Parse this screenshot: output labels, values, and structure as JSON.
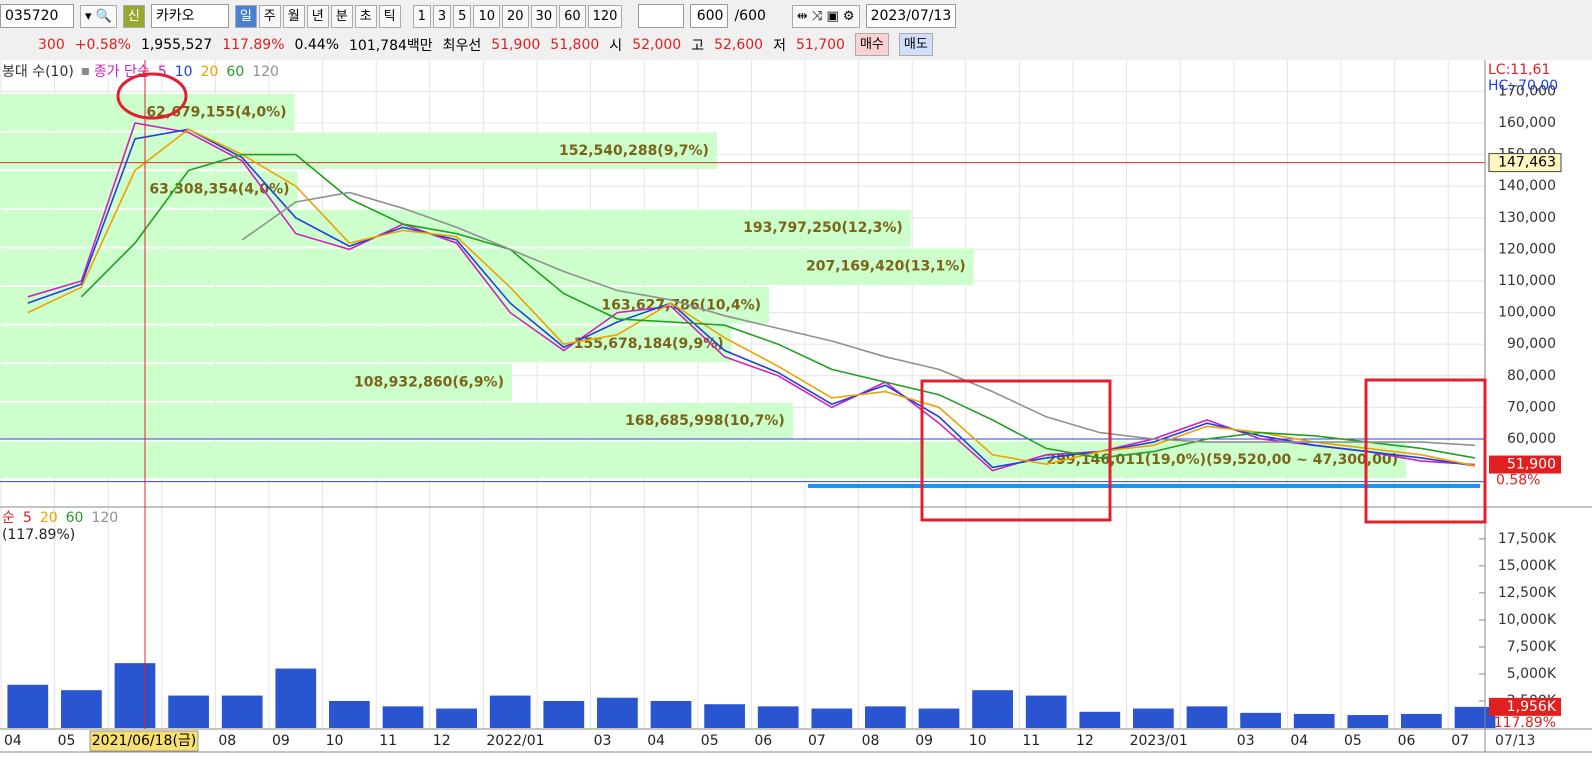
{
  "toolbar": {
    "code": "035720",
    "badge": "신",
    "name": "카카오",
    "periods": [
      "일",
      "주",
      "월",
      "년",
      "분",
      "초",
      "틱"
    ],
    "intervals": [
      "1",
      "3",
      "5",
      "10",
      "20",
      "30",
      "60",
      "120"
    ],
    "count": "600",
    "total": "/600",
    "date": "2023/07/13"
  },
  "quote": {
    "change": "300",
    "change_rate": "+0.58%",
    "volume": "1,955,527",
    "volume_rate": "117.89%",
    "turnover": "0.44%",
    "amount": "101,784백만",
    "best_label": "최우선",
    "ask": "51,900",
    "bid": "51,800",
    "open_label": "시",
    "open": "52,000",
    "high_label": "고",
    "high": "52,600",
    "low_label": "저",
    "low": "51,700",
    "buy": "매수",
    "sell": "매도"
  },
  "chart_data": [
    {
      "type": "line",
      "legend_prefix": "봉대 수(10)",
      "legend_title": "종가 단순",
      "series": [
        {
          "name": "5",
          "color": "#d020c0",
          "values": [
            105000,
            110000,
            160000,
            157000,
            148000,
            125000,
            120000,
            128000,
            122000,
            100000,
            88000,
            100000,
            102000,
            86000,
            80000,
            70000,
            78000,
            65000,
            50000,
            55000,
            56000,
            60000,
            66000,
            60000,
            58000,
            56000,
            53000,
            51900
          ]
        },
        {
          "name": "10",
          "color": "#2040e0",
          "values": [
            103000,
            109000,
            155000,
            158000,
            149000,
            130000,
            121000,
            127000,
            123000,
            103000,
            89000,
            97000,
            103000,
            88000,
            81000,
            71000,
            77000,
            67000,
            51000,
            54000,
            56000,
            59000,
            65000,
            61000,
            58000,
            56000,
            54000,
            51500
          ]
        },
        {
          "name": "20",
          "color": "#f0a000",
          "values": [
            100000,
            108000,
            145000,
            158000,
            150000,
            140000,
            122000,
            126000,
            124000,
            108000,
            90000,
            93000,
            103000,
            92000,
            83000,
            73000,
            75000,
            70000,
            55000,
            52000,
            56000,
            58000,
            64000,
            62000,
            59000,
            57000,
            55000,
            51500
          ]
        },
        {
          "name": "60",
          "color": "#20a020",
          "values": [
            null,
            105000,
            122000,
            145000,
            150000,
            150000,
            136000,
            128000,
            125000,
            120000,
            106000,
            98000,
            97000,
            96000,
            90000,
            82000,
            78000,
            74000,
            66000,
            57000,
            54000,
            56000,
            60000,
            62000,
            61000,
            59000,
            57000,
            54000
          ]
        },
        {
          "name": "120",
          "color": "#909090",
          "values": [
            null,
            null,
            null,
            null,
            123000,
            135000,
            138000,
            133000,
            127000,
            120000,
            113000,
            107000,
            104000,
            99000,
            95000,
            91000,
            86000,
            82000,
            75000,
            67000,
            62000,
            60000,
            59000,
            59000,
            59000,
            59000,
            59000,
            58000
          ]
        }
      ],
      "ylim": [
        39100,
        179300
      ],
      "yticks": [
        {
          "value": 60000,
          "label": "60,000"
        },
        {
          "value": 70000,
          "label": "70,000"
        },
        {
          "value": 80000,
          "label": "80,000"
        },
        {
          "value": 90000,
          "label": "90,000"
        },
        {
          "value": 100000,
          "label": "100,000"
        },
        {
          "value": 110000,
          "label": "110,000"
        },
        {
          "value": 120000,
          "label": "120,000"
        },
        {
          "value": 130000,
          "label": "130,000"
        },
        {
          "value": 140000,
          "label": "140,000"
        },
        {
          "value": 150000,
          "label": "150,000"
        },
        {
          "value": 160000,
          "label": "160,000"
        },
        {
          "value": 170000,
          "label": "170,000"
        }
      ],
      "grid": true,
      "profile_color": "#ccffcc",
      "volume_profile": [
        {
          "low": 157280,
          "high": 169500,
          "value": 62679155,
          "label": "62,679,155(4,0%)"
        },
        {
          "low": 145060,
          "high": 157280,
          "value": 152540288,
          "label": "152,540,288(9,7%)"
        },
        {
          "low": 132840,
          "high": 145060,
          "value": 63308354,
          "label": "63,308,354(4,0%)"
        },
        {
          "low": 120620,
          "high": 132840,
          "value": 193797250,
          "label": "193,797,250(12,3%)"
        },
        {
          "low": 108400,
          "high": 120620,
          "value": 207169420,
          "label": "207,169,420(13,1%)"
        },
        {
          "low": 96180,
          "high": 108400,
          "value": 163627786,
          "label": "163,627,786(10,4%)"
        },
        {
          "low": 83960,
          "high": 96180,
          "value": 155678184,
          "label": "155,678,184(9,9%)"
        },
        {
          "low": 71740,
          "high": 83960,
          "value": 108932860,
          "label": "108,932,860(6,9%)"
        },
        {
          "low": 59520,
          "high": 71740,
          "value": 168685998,
          "label": "168,685,998(10,7%)"
        },
        {
          "low": 47300,
          "high": 59520,
          "value": 299146011,
          "label": "299,146,011(19,0%)(59,520,00 ~ 47,300,00)"
        }
      ],
      "hlines": [
        {
          "value": 147463,
          "label": "147,463",
          "color": "#e03030"
        },
        {
          "value": 60000,
          "color": "#3040e0"
        },
        {
          "value": 46500,
          "color": "#3040e0"
        }
      ],
      "last": {
        "value": 51900,
        "label": "51,900"
      },
      "last_change": "0.58%",
      "lc": "LC:11,61",
      "hc": "HC:-70,00",
      "crosshair_label": "2021/06/18(금)"
    },
    {
      "type": "bar",
      "categories": [
        "04",
        "05",
        null,
        null,
        "08",
        "09",
        "10",
        "11",
        "12",
        "2022/01",
        null,
        "03",
        "04",
        "05",
        "06",
        "07",
        "08",
        "09",
        "10",
        "11",
        "12",
        "2023/01",
        null,
        "03",
        "04",
        "05",
        "06",
        "07"
      ],
      "values": [
        4000,
        3500,
        6000,
        3000,
        3000,
        5500,
        2500,
        2000,
        1800,
        3000,
        2500,
        2800,
        2500,
        2200,
        2000,
        1800,
        2000,
        1800,
        3500,
        3000,
        1500,
        1800,
        2000,
        1400,
        1300,
        1200,
        1300,
        1956
      ],
      "color": "#2a55d0",
      "ylim": [
        0,
        19800
      ],
      "yticks": [
        {
          "value": 2500,
          "label": "2,500K"
        },
        {
          "value": 5000,
          "label": "5,000K"
        },
        {
          "value": 7500,
          "label": "7,500K"
        },
        {
          "value": 10000,
          "label": "10,000K"
        },
        {
          "value": 12500,
          "label": "12,500K"
        },
        {
          "value": 15000,
          "label": "15,000K"
        },
        {
          "value": 17500,
          "label": "17,500K"
        }
      ],
      "legend": [
        "순",
        "5",
        "20",
        "60",
        "120"
      ],
      "legend_colors": [
        "#e02020",
        "#e02020",
        "#f0a000",
        "#20a020",
        "#909090"
      ],
      "ratio": "(117.89%)",
      "last": {
        "value": 1956,
        "label": "1,956K"
      },
      "last_ratio": "117.89%",
      "end_label": "07/13"
    }
  ]
}
